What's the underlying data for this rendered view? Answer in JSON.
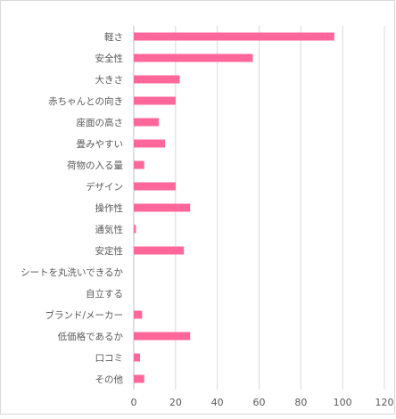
{
  "chart_data": {
    "type": "bar",
    "orientation": "horizontal",
    "title": "",
    "xlabel": "",
    "ylabel": "",
    "xlim": [
      0,
      120
    ],
    "ticks": [
      0,
      20,
      40,
      60,
      80,
      100,
      120
    ],
    "grid": true,
    "legend": "none",
    "bar_color": "#ff6699",
    "categories": [
      "軽さ",
      "安全性",
      "大きさ",
      "赤ちゃんとの向き",
      "座面の高さ",
      "畳みやすい",
      "荷物の入る量",
      "デザイン",
      "操作性",
      "通気性",
      "安定性",
      "シートを丸洗いできるか",
      "自立する",
      "ブランド/メーカー",
      "低価格であるか",
      "口コミ",
      "その他"
    ],
    "values": [
      96,
      57,
      22,
      20,
      12,
      15,
      5,
      20,
      27,
      1,
      24,
      0,
      0,
      4,
      27,
      3,
      5
    ]
  }
}
